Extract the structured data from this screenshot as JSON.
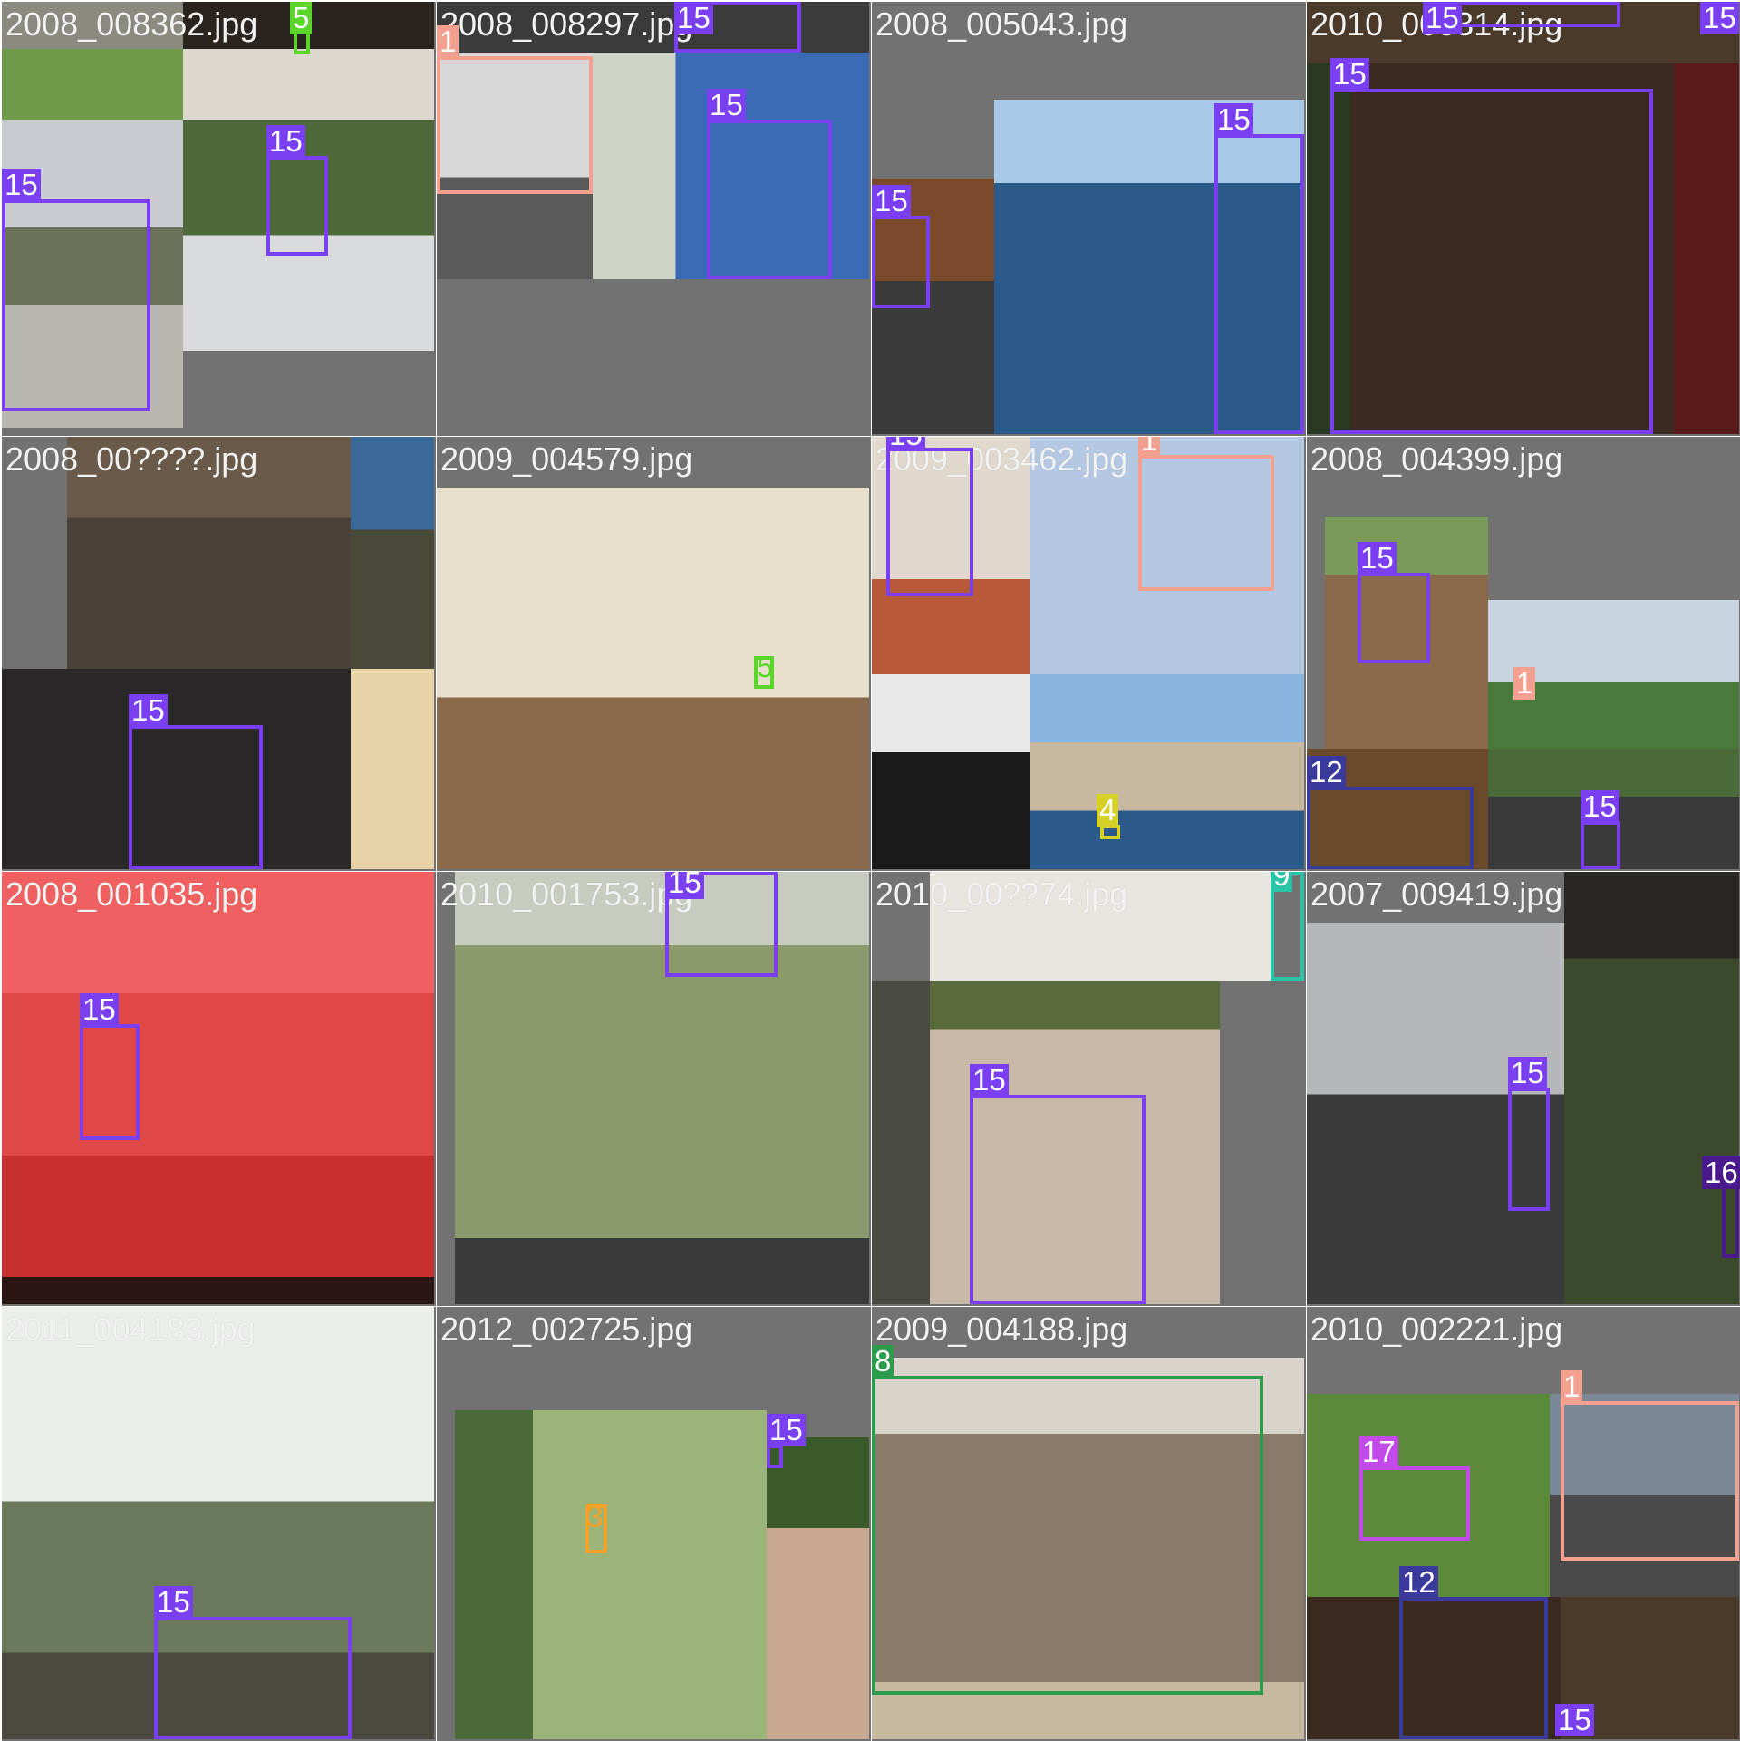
{
  "grid_title": "",
  "tiles": [
    {
      "filename": "2008_008362.jpg",
      "labels": [
        "5",
        "15",
        "15"
      ]
    },
    {
      "filename": "2008_008297.jpg",
      "labels": [
        "15",
        "1",
        "15"
      ]
    },
    {
      "filename": "2008_005043.jpg",
      "labels": [
        "15",
        "15"
      ]
    },
    {
      "filename": "2010_003314.jpg",
      "labels": [
        "15",
        "15",
        "15"
      ]
    },
    {
      "filename": "2008_00????.jpg",
      "labels": [
        "15"
      ]
    },
    {
      "filename": "2009_004579.jpg",
      "labels": [
        "5"
      ]
    },
    {
      "filename": "2009_003462.jpg",
      "labels": [
        "15",
        "1",
        "4"
      ]
    },
    {
      "filename": "2008_004399.jpg",
      "labels": [
        "15",
        "1",
        "12",
        "15"
      ]
    },
    {
      "filename": "2008_001035.jpg",
      "labels": [
        "15"
      ]
    },
    {
      "filename": "2010_001753.jpg",
      "labels": [
        "15"
      ]
    },
    {
      "filename": "2010_00??74.jpg",
      "labels": [
        "9",
        "15"
      ]
    },
    {
      "filename": "2007_009419.jpg",
      "labels": [
        "15",
        "16"
      ]
    },
    {
      "filename": "2011_004183.jpg",
      "labels": [
        "15"
      ]
    },
    {
      "filename": "2012_002725.jpg",
      "labels": [
        "15",
        "3"
      ]
    },
    {
      "filename": "2009_004188.jpg",
      "labels": [
        "8"
      ]
    },
    {
      "filename": "2010_002221.jpg",
      "labels": [
        "1",
        "17",
        "12",
        "15"
      ]
    }
  ],
  "colors": {
    "person": "#7b3ff2",
    "aeroplane": "#f4a090",
    "bottle": "#5ad62a",
    "boat": "#d4d026",
    "dog": "#3a3a9c",
    "bird": "#f2a22a",
    "cat": "#2a9c4a",
    "chair": "#2ac4a8",
    "pottedplant": "#4a1a8c",
    "sheep": "#c24ae8"
  }
}
